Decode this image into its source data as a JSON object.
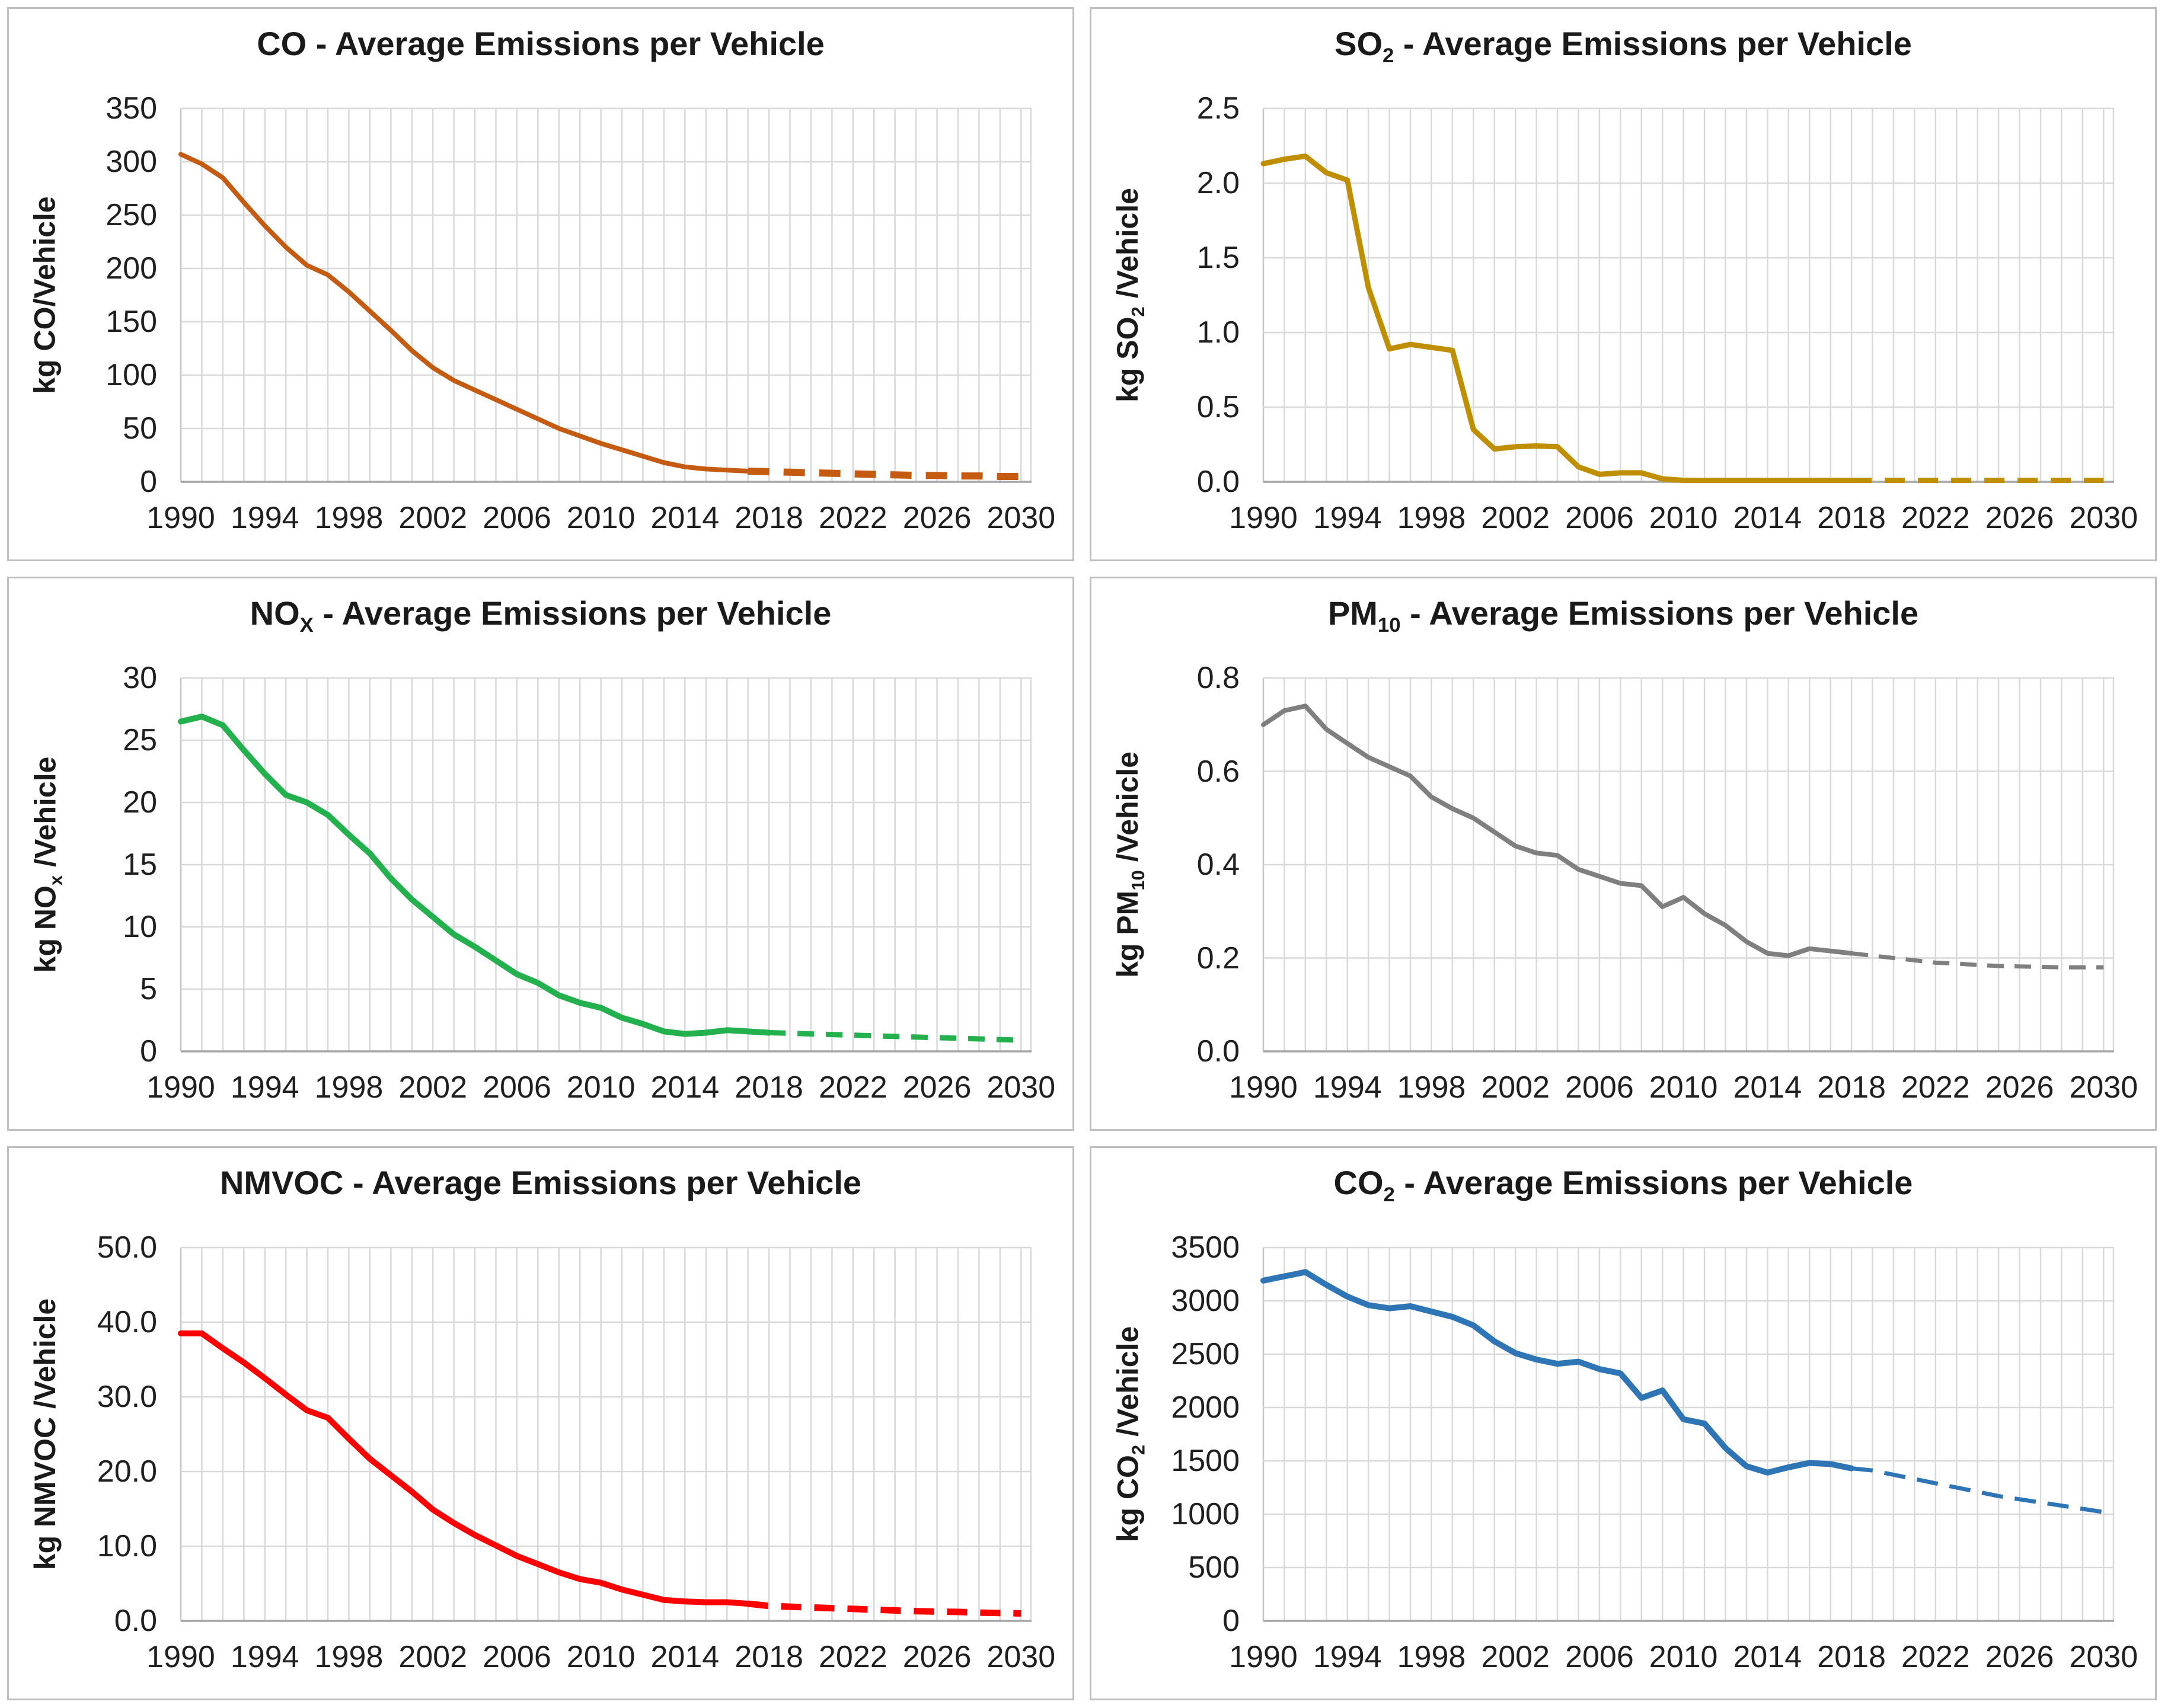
{
  "page": {
    "background": "#FFFFFF",
    "panel_border_color": "#BFBFBF",
    "grid_color": "#D9D9D9",
    "axis_color": "#A6A6A6",
    "text_color": "#1F1F1F"
  },
  "chart_data": [
    {
      "id": "co",
      "type": "line",
      "title": {
        "base": "CO",
        "sub": "",
        "rest": " - Average Emissions per Vehicle"
      },
      "ylabel": {
        "base": "kg CO",
        "sub": "",
        "rest": "/Vehicle"
      },
      "color": "#C55A11",
      "ylim": [
        0,
        350
      ],
      "ytick_step": 50,
      "ytick_decimals": 0,
      "x_start": 1990,
      "x_end": 2030,
      "xticks": [
        1990,
        1994,
        1998,
        2002,
        2006,
        2010,
        2014,
        2018,
        2022,
        2026,
        2030
      ],
      "values": [
        307,
        298,
        285,
        262,
        240,
        220,
        203,
        194,
        178,
        160,
        142,
        123,
        107,
        95,
        86,
        77,
        68,
        59,
        50,
        43,
        36,
        30,
        24,
        18,
        14,
        12,
        11,
        10,
        9.5,
        9,
        8.5,
        8,
        7.5,
        7,
        6.5,
        6,
        6,
        5.5,
        5.5,
        5,
        5
      ],
      "dash_from": 2017,
      "solid_width": 8,
      "dash_width": 12,
      "dash_array": "36 24",
      "grid": "both",
      "legend": "none"
    },
    {
      "id": "so2",
      "type": "line",
      "title": {
        "base": "SO",
        "sub": "2",
        "rest": " - Average Emissions per Vehicle"
      },
      "ylabel": {
        "base": "kg SO",
        "sub": "2",
        "rest": " /Vehicle"
      },
      "color": "#BF8F00",
      "ylim": [
        0,
        2.5
      ],
      "ytick_step": 0.5,
      "ytick_decimals": 1,
      "x_start": 1990,
      "x_end": 2030,
      "xticks": [
        1990,
        1994,
        1998,
        2002,
        2006,
        2010,
        2014,
        2018,
        2022,
        2026,
        2030
      ],
      "values": [
        2.13,
        2.16,
        2.18,
        2.07,
        2.02,
        1.3,
        0.89,
        0.92,
        0.9,
        0.88,
        0.35,
        0.22,
        0.235,
        0.24,
        0.235,
        0.1,
        0.05,
        0.06,
        0.06,
        0.02,
        0.01,
        0.01,
        0.01,
        0.01,
        0.01,
        0.01,
        0.01,
        0.01,
        0.01,
        0.01,
        0.01,
        0.01,
        0.01,
        0.01,
        0.01,
        0.01,
        0.01,
        0.01,
        0.01,
        0.01,
        0.01
      ],
      "dash_from": 2018,
      "solid_width": 9,
      "dash_width": 9,
      "dash_array": "34 22",
      "grid": "both",
      "legend": "none"
    },
    {
      "id": "nox",
      "type": "line",
      "title": {
        "base": "NO",
        "sub": "X",
        "rest": " - Average Emissions per Vehicle"
      },
      "ylabel": {
        "base": "kg NO",
        "sub": "x",
        "rest": " /Vehicle"
      },
      "color": "#22B14C",
      "ylim": [
        0,
        30
      ],
      "ytick_step": 5,
      "ytick_decimals": 0,
      "x_start": 1990,
      "x_end": 2030,
      "xticks": [
        1990,
        1994,
        1998,
        2002,
        2006,
        2010,
        2014,
        2018,
        2022,
        2026,
        2030
      ],
      "values": [
        26.5,
        26.9,
        26.2,
        24.2,
        22.3,
        20.6,
        20,
        19,
        17.4,
        15.9,
        13.9,
        12.2,
        10.8,
        9.4,
        8.4,
        7.3,
        6.2,
        5.5,
        4.5,
        3.9,
        3.5,
        2.7,
        2.2,
        1.6,
        1.4,
        1.5,
        1.7,
        1.6,
        1.5,
        1.45,
        1.4,
        1.35,
        1.3,
        1.25,
        1.2,
        1.15,
        1.1,
        1.05,
        1.0,
        0.95,
        0.9
      ],
      "dash_from": 2018,
      "solid_width": 10,
      "dash_width": 9,
      "dash_array": "28 20",
      "grid": "both",
      "legend": "none"
    },
    {
      "id": "pm10",
      "type": "line",
      "title": {
        "base": "PM",
        "sub": "10",
        "rest": " - Average Emissions per Vehicle"
      },
      "ylabel": {
        "base": "kg PM",
        "sub": "10",
        "rest": " /Vehicle"
      },
      "color": "#7F7F7F",
      "ylim": [
        0,
        0.8
      ],
      "ytick_step": 0.2,
      "ytick_decimals": 1,
      "x_start": 1990,
      "x_end": 2030,
      "xticks": [
        1990,
        1994,
        1998,
        2002,
        2006,
        2010,
        2014,
        2018,
        2022,
        2026,
        2030
      ],
      "values": [
        0.7,
        0.73,
        0.74,
        0.69,
        0.66,
        0.63,
        0.61,
        0.59,
        0.545,
        0.52,
        0.5,
        0.47,
        0.44,
        0.425,
        0.42,
        0.39,
        0.375,
        0.36,
        0.355,
        0.31,
        0.33,
        0.295,
        0.27,
        0.235,
        0.21,
        0.205,
        0.22,
        0.215,
        0.21,
        0.205,
        0.2,
        0.195,
        0.19,
        0.188,
        0.185,
        0.183,
        0.182,
        0.181,
        0.18,
        0.18,
        0.18
      ],
      "dash_from": 2018,
      "solid_width": 8,
      "dash_width": 7,
      "dash_array": "28 18",
      "grid": "both",
      "legend": "none"
    },
    {
      "id": "nmvoc",
      "type": "line",
      "title": {
        "base": "NMVOC",
        "sub": "",
        "rest": " - Average Emissions per Vehicle"
      },
      "ylabel": {
        "base": "kg NMVOC",
        "sub": "",
        "rest": " /Vehicle"
      },
      "color": "#FF0000",
      "ylim": [
        0,
        50
      ],
      "ytick_step": 10,
      "ytick_decimals": 1,
      "x_start": 1990,
      "x_end": 2030,
      "xticks": [
        1990,
        1994,
        1998,
        2002,
        2006,
        2010,
        2014,
        2018,
        2022,
        2026,
        2030
      ],
      "values": [
        38.5,
        38.5,
        36.5,
        34.6,
        32.5,
        30.3,
        28.2,
        27.2,
        24.4,
        21.7,
        19.5,
        17.3,
        14.9,
        13.1,
        11.5,
        10.1,
        8.7,
        7.6,
        6.5,
        5.6,
        5.1,
        4.2,
        3.5,
        2.8,
        2.6,
        2.5,
        2.5,
        2.3,
        2.0,
        1.9,
        1.8,
        1.7,
        1.6,
        1.5,
        1.4,
        1.3,
        1.25,
        1.2,
        1.1,
        1.05,
        1.0
      ],
      "dash_from": 2017,
      "solid_width": 10,
      "dash_width": 11,
      "dash_array": "34 22",
      "grid": "both",
      "legend": "none"
    },
    {
      "id": "co2",
      "type": "line",
      "title": {
        "base": "CO",
        "sub": "2",
        "rest": " - Average Emissions per Vehicle"
      },
      "ylabel": {
        "base": "kg CO",
        "sub": "2",
        "rest": " /Vehicle"
      },
      "color": "#2E75B6",
      "ylim": [
        0,
        3500
      ],
      "ytick_step": 500,
      "ytick_decimals": 0,
      "x_start": 1990,
      "x_end": 2030,
      "xticks": [
        1990,
        1994,
        1998,
        2002,
        2006,
        2010,
        2014,
        2018,
        2022,
        2026,
        2030
      ],
      "values": [
        3190,
        3230,
        3270,
        3150,
        3040,
        2960,
        2930,
        2950,
        2900,
        2850,
        2770,
        2620,
        2510,
        2450,
        2410,
        2430,
        2360,
        2320,
        2090,
        2160,
        1890,
        1850,
        1620,
        1450,
        1390,
        1440,
        1480,
        1470,
        1430,
        1410,
        1370,
        1330,
        1290,
        1250,
        1210,
        1170,
        1140,
        1110,
        1080,
        1050,
        1020
      ],
      "dash_from": 2018,
      "solid_width": 10,
      "dash_width": 7,
      "dash_array": "36 20",
      "grid": "both",
      "legend": "none"
    }
  ]
}
